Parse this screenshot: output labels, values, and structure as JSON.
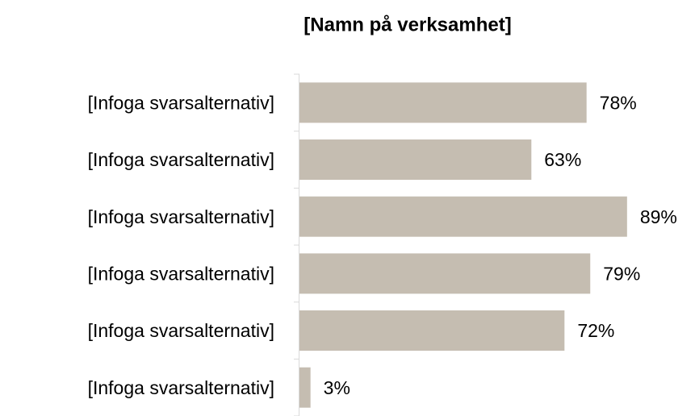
{
  "chart_data": {
    "type": "bar",
    "orientation": "horizontal",
    "title": "[Namn på verksamhet]",
    "categories": [
      "[Infoga svarsalternativ]",
      "[Infoga svarsalternativ]",
      "[Infoga svarsalternativ]",
      "[Infoga svarsalternativ]",
      "[Infoga svarsalternativ]",
      "[Infoga svarsalternativ]"
    ],
    "values": [
      78,
      63,
      89,
      79,
      72,
      3
    ],
    "value_labels": [
      "78%",
      "63%",
      "89%",
      "79%",
      "72%",
      "3%"
    ],
    "color": "#c5bdb1"
  }
}
